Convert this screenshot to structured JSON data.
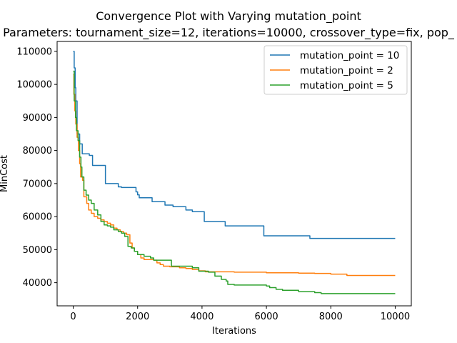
{
  "chart_data": {
    "type": "line",
    "title": "Convergence Plot with Varying mutation_point",
    "subtitle": "Parameters: tournament_size=12, iterations=10000, crossover_type=fix, pop_",
    "xlabel": "Iterations",
    "ylabel": "MinCost",
    "xlim": [
      -500,
      10500
    ],
    "ylim": [
      33000,
      113000
    ],
    "x_ticks": [
      0,
      2000,
      4000,
      6000,
      8000,
      10000
    ],
    "y_ticks": [
      40000,
      50000,
      60000,
      70000,
      80000,
      90000,
      100000,
      110000
    ],
    "grid": false,
    "legend_position": "upper-right",
    "series": [
      {
        "name": "mutation_point = 10",
        "color": "#1f77b4",
        "points": [
          [
            0,
            110000
          ],
          [
            30,
            105000
          ],
          [
            60,
            99000
          ],
          [
            80,
            95000
          ],
          [
            120,
            85000
          ],
          [
            200,
            82000
          ],
          [
            280,
            79000
          ],
          [
            500,
            78500
          ],
          [
            600,
            75500
          ],
          [
            990,
            75500
          ],
          [
            1000,
            70000
          ],
          [
            1350,
            70000
          ],
          [
            1400,
            69000
          ],
          [
            1500,
            68800
          ],
          [
            1900,
            68800
          ],
          [
            1950,
            67500
          ],
          [
            2000,
            66600
          ],
          [
            2050,
            65700
          ],
          [
            2400,
            65700
          ],
          [
            2450,
            64500
          ],
          [
            2800,
            64500
          ],
          [
            2850,
            63500
          ],
          [
            3050,
            63500
          ],
          [
            3100,
            63000
          ],
          [
            3450,
            63000
          ],
          [
            3500,
            62000
          ],
          [
            3700,
            61500
          ],
          [
            4050,
            61500
          ],
          [
            4070,
            58500
          ],
          [
            4700,
            58500
          ],
          [
            4720,
            57200
          ],
          [
            5900,
            57200
          ],
          [
            5920,
            54200
          ],
          [
            7300,
            54200
          ],
          [
            7350,
            53400
          ],
          [
            10000,
            53400
          ]
        ]
      },
      {
        "name": "mutation_point = 2",
        "color": "#ff7f0e",
        "points": [
          [
            0,
            103000
          ],
          [
            20,
            97000
          ],
          [
            50,
            92000
          ],
          [
            80,
            88000
          ],
          [
            120,
            84000
          ],
          [
            160,
            80000
          ],
          [
            200,
            76000
          ],
          [
            230,
            72000
          ],
          [
            290,
            71000
          ],
          [
            330,
            66000
          ],
          [
            420,
            64000
          ],
          [
            480,
            62000
          ],
          [
            560,
            61000
          ],
          [
            650,
            60000
          ],
          [
            760,
            59500
          ],
          [
            860,
            59000
          ],
          [
            960,
            58500
          ],
          [
            1060,
            58000
          ],
          [
            1160,
            57500
          ],
          [
            1260,
            56500
          ],
          [
            1360,
            56000
          ],
          [
            1460,
            55500
          ],
          [
            1560,
            55000
          ],
          [
            1660,
            54500
          ],
          [
            1760,
            52000
          ],
          [
            1830,
            50500
          ],
          [
            1900,
            49500
          ],
          [
            2000,
            48500
          ],
          [
            2100,
            47500
          ],
          [
            2200,
            47000
          ],
          [
            2500,
            46800
          ],
          [
            2600,
            46000
          ],
          [
            2700,
            45500
          ],
          [
            2800,
            45000
          ],
          [
            3000,
            44800
          ],
          [
            3300,
            44500
          ],
          [
            3500,
            44300
          ],
          [
            3700,
            44000
          ],
          [
            3900,
            43600
          ],
          [
            4100,
            43300
          ],
          [
            5000,
            43200
          ],
          [
            6000,
            43000
          ],
          [
            7000,
            42900
          ],
          [
            7500,
            42800
          ],
          [
            8000,
            42600
          ],
          [
            8500,
            42200
          ],
          [
            10000,
            42200
          ]
        ]
      },
      {
        "name": "mutation_point = 5",
        "color": "#2ca02c",
        "points": [
          [
            0,
            104000
          ],
          [
            30,
            95000
          ],
          [
            70,
            90000
          ],
          [
            100,
            86000
          ],
          [
            150,
            83000
          ],
          [
            200,
            78000
          ],
          [
            240,
            75000
          ],
          [
            270,
            72000
          ],
          [
            330,
            68000
          ],
          [
            400,
            66500
          ],
          [
            480,
            65000
          ],
          [
            560,
            64000
          ],
          [
            650,
            62000
          ],
          [
            760,
            60500
          ],
          [
            860,
            58500
          ],
          [
            960,
            57500
          ],
          [
            1060,
            57200
          ],
          [
            1160,
            56800
          ],
          [
            1260,
            56000
          ],
          [
            1400,
            55500
          ],
          [
            1500,
            55000
          ],
          [
            1600,
            54000
          ],
          [
            1700,
            51000
          ],
          [
            1800,
            50500
          ],
          [
            1900,
            49500
          ],
          [
            2000,
            48500
          ],
          [
            2200,
            48000
          ],
          [
            2400,
            47500
          ],
          [
            2500,
            46800
          ],
          [
            3000,
            46800
          ],
          [
            3050,
            45000
          ],
          [
            3600,
            45000
          ],
          [
            3700,
            44500
          ],
          [
            3900,
            43500
          ],
          [
            4200,
            43200
          ],
          [
            4400,
            42000
          ],
          [
            4600,
            41000
          ],
          [
            4750,
            40500
          ],
          [
            4800,
            39500
          ],
          [
            5000,
            39300
          ],
          [
            6000,
            39000
          ],
          [
            6100,
            38500
          ],
          [
            6300,
            38000
          ],
          [
            6500,
            37700
          ],
          [
            7000,
            37300
          ],
          [
            7500,
            37000
          ],
          [
            7700,
            36700
          ],
          [
            10000,
            36700
          ]
        ]
      }
    ]
  }
}
